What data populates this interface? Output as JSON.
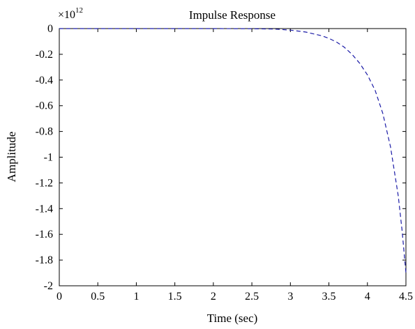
{
  "chart_data": {
    "type": "line",
    "title": "Impulse Response",
    "xlabel": "Time (sec)",
    "ylabel": "Amplitude",
    "y_multiplier_base": "×10",
    "y_multiplier_exp": "12",
    "xlim": [
      0,
      4.5
    ],
    "ylim": [
      -2,
      0
    ],
    "x_ticks": [
      0,
      0.5,
      1,
      1.5,
      2,
      2.5,
      3,
      3.5,
      4,
      4.5
    ],
    "x_tick_labels": [
      "0",
      "0.5",
      "1",
      "1.5",
      "2",
      "2.5",
      "3",
      "3.5",
      "4",
      "4.5"
    ],
    "y_ticks": [
      0,
      -0.2,
      -0.4,
      -0.6,
      -0.8,
      -1,
      -1.2,
      -1.4,
      -1.6,
      -1.8,
      -2
    ],
    "y_tick_labels": [
      "0",
      "-0.2",
      "-0.4",
      "-0.6",
      "-0.8",
      "-1",
      "-1.2",
      "-1.4",
      "-1.6",
      "-1.8",
      "-2"
    ],
    "grid": false,
    "series": [
      {
        "line_style": "dashed",
        "color": "#1a1aa6",
        "x": [
          0,
          0.5,
          1.0,
          1.5,
          2.0,
          2.5,
          2.8,
          3.0,
          3.2,
          3.4,
          3.5,
          3.6,
          3.7,
          3.8,
          3.9,
          4.0,
          4.1,
          4.2,
          4.3,
          4.4,
          4.45,
          4.5
        ],
        "y": [
          0,
          0,
          0,
          0,
          0,
          -0.001,
          -0.004,
          -0.012,
          -0.027,
          -0.055,
          -0.076,
          -0.105,
          -0.145,
          -0.2,
          -0.27,
          -0.36,
          -0.48,
          -0.66,
          -0.92,
          -1.3,
          -1.57,
          -1.9
        ]
      }
    ]
  }
}
